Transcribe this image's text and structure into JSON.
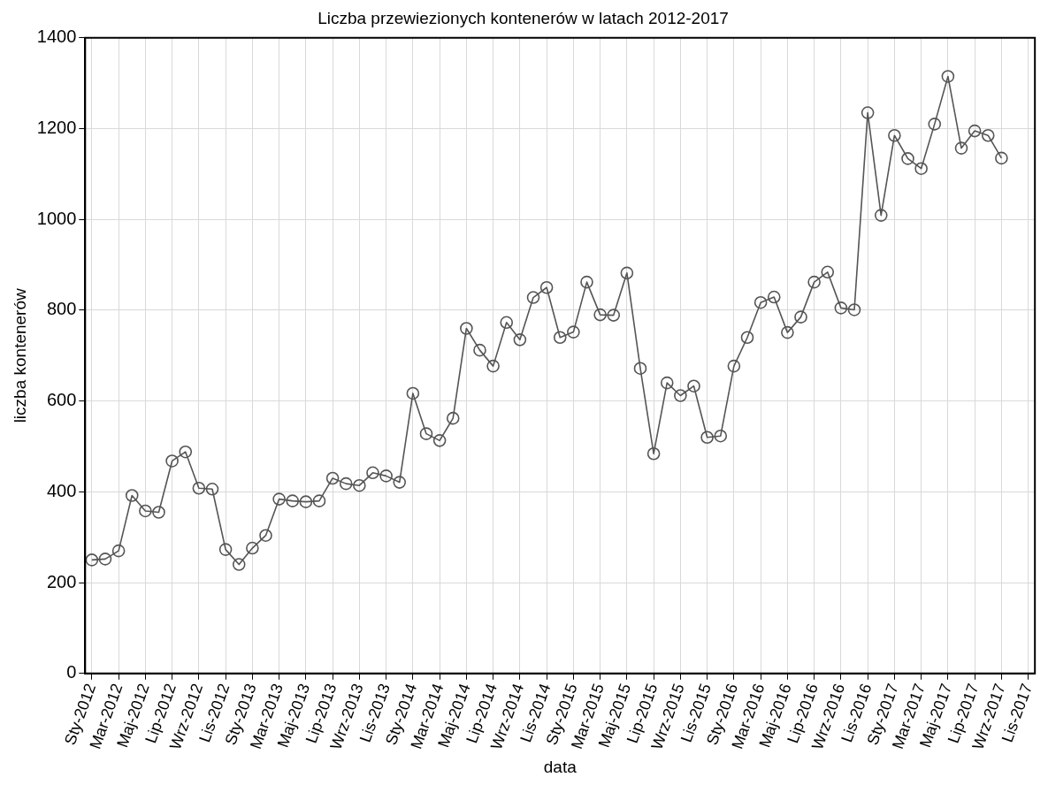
{
  "chart_data": {
    "type": "line",
    "title": "Liczba przewiezionych kontenerów w latach 2012-2017",
    "xlabel": "data",
    "ylabel": "liczba kontenerów",
    "categories": [
      "Sty-2012",
      null,
      "Mar-2012",
      null,
      "Maj-2012",
      null,
      "Lip-2012",
      null,
      "Wrz-2012",
      null,
      "Lis-2012",
      null,
      "Sty-2013",
      null,
      "Mar-2013",
      null,
      "Maj-2013",
      null,
      "Lip-2013",
      null,
      "Wrz-2013",
      null,
      "Lis-2013",
      null,
      "Sty-2014",
      null,
      "Mar-2014",
      null,
      "Maj-2014",
      null,
      "Lip-2014",
      null,
      "Wrz-2014",
      null,
      "Lis-2014",
      null,
      "Sty-2015",
      null,
      "Mar-2015",
      null,
      "Maj-2015",
      null,
      "Lip-2015",
      null,
      "Wrz-2015",
      null,
      "Lis-2015",
      null,
      "Sty-2016",
      null,
      "Mar-2016",
      null,
      "Maj-2016",
      null,
      "Lip-2016",
      null,
      "Wrz-2016",
      null,
      "Lis-2016",
      null,
      "Sty-2017",
      null,
      "Mar-2017",
      null,
      "Maj-2017",
      null,
      "Lip-2017",
      null,
      "Wrz-2017",
      null,
      "Lis-2017"
    ],
    "series": [
      {
        "color": "#555555",
        "values": [
          250,
          252,
          270,
          392,
          358,
          355,
          468,
          488,
          408,
          406,
          273,
          240,
          276,
          304,
          384,
          380,
          378,
          380,
          430,
          418,
          414,
          442,
          435,
          421,
          617,
          528,
          513,
          562,
          760,
          712,
          677,
          773,
          735,
          828,
          850,
          740,
          752,
          862,
          790,
          789,
          882,
          672,
          484,
          640,
          612,
          633,
          520,
          523,
          677,
          740,
          817,
          829,
          751,
          785,
          862,
          884,
          805,
          801,
          1235,
          1009,
          1185,
          1134,
          1112,
          1210,
          1315,
          1157,
          1195,
          1185,
          1135,
          null,
          null
        ]
      }
    ],
    "ylim": [
      0,
      1400
    ],
    "yticks": [
      0,
      200,
      400,
      600,
      800,
      1000,
      1200,
      1400
    ],
    "grid": true,
    "legend": false,
    "marker": "circle",
    "line_style": "solid"
  }
}
